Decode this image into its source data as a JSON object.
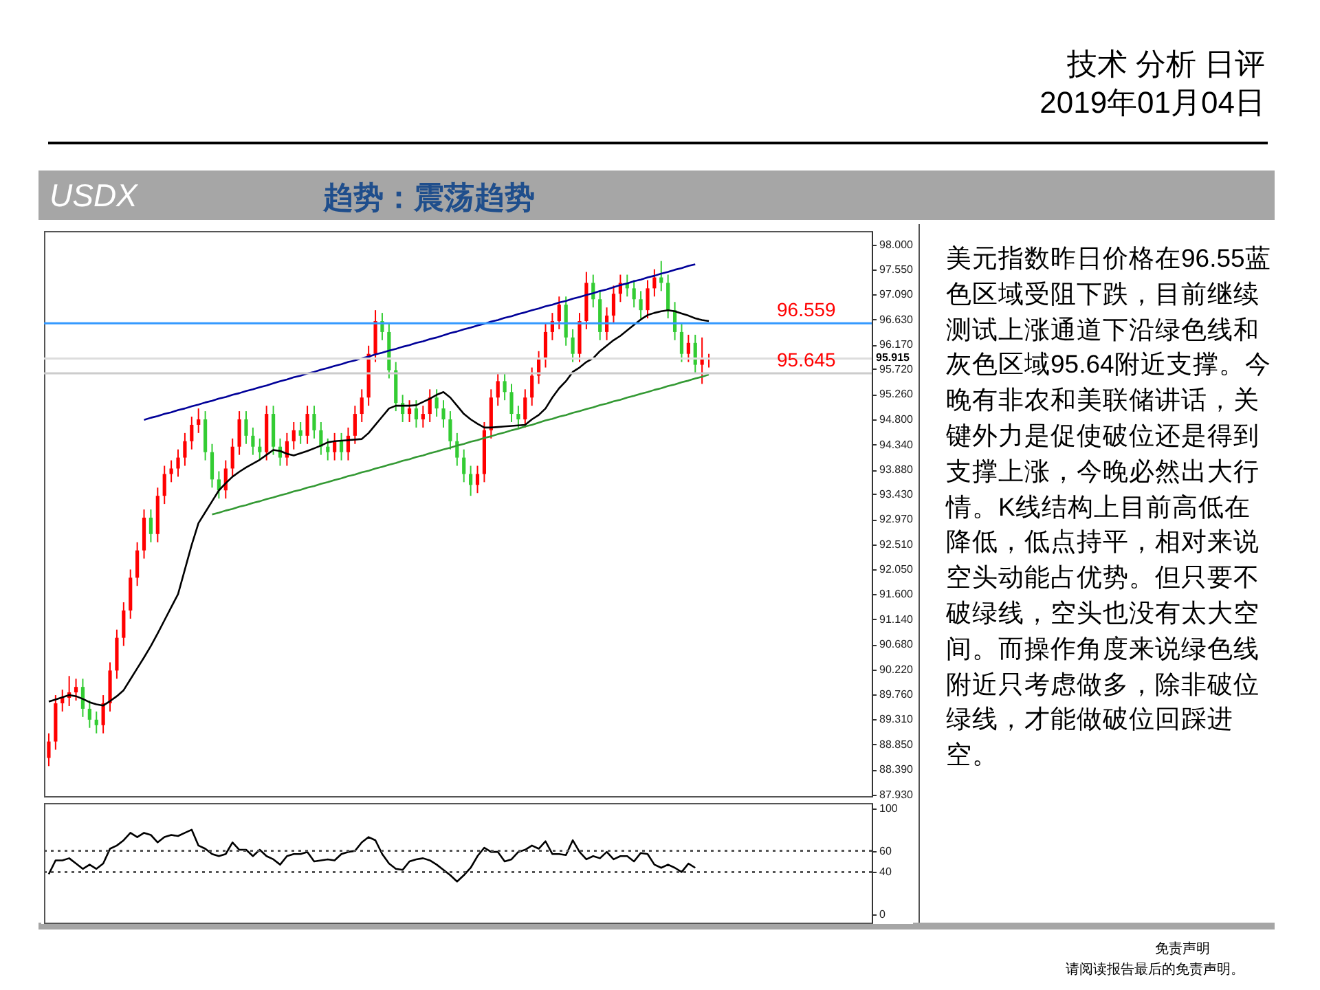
{
  "chart_data": [
    {
      "type": "candlestick",
      "title": "USDX",
      "subtitle": "趋势：震荡趋势",
      "categories": [
        null,
        null,
        null,
        null,
        null,
        null,
        null,
        null,
        null,
        null,
        null,
        null,
        null,
        null,
        null,
        null,
        null,
        null,
        null,
        null,
        null,
        null,
        null,
        null,
        null,
        null,
        null,
        null,
        null,
        null,
        null,
        null,
        null,
        null,
        null,
        null,
        null,
        null,
        null,
        null,
        null,
        null,
        null,
        null,
        null,
        null,
        null,
        null,
        null,
        null,
        null,
        null,
        null,
        null,
        null,
        null,
        null,
        null,
        null,
        null,
        null,
        null,
        null,
        null,
        null,
        null,
        null,
        null,
        null,
        null,
        null,
        null,
        null,
        null,
        null,
        null,
        null,
        null,
        null,
        null,
        null,
        null,
        null,
        null,
        null,
        null,
        null,
        null,
        null,
        null,
        null,
        null,
        null,
        null,
        null,
        null,
        null,
        null
      ],
      "ohlc": [
        [
          88.6,
          89.05,
          88.45,
          88.9
        ],
        [
          88.9,
          89.75,
          88.75,
          89.6
        ],
        [
          89.6,
          89.85,
          89.45,
          89.7
        ],
        [
          89.7,
          90.1,
          89.55,
          89.8
        ],
        [
          89.8,
          90.05,
          89.65,
          89.9
        ],
        [
          89.9,
          90.05,
          89.35,
          89.5
        ],
        [
          89.5,
          89.65,
          89.15,
          89.3
        ],
        [
          89.3,
          89.45,
          89.05,
          89.2
        ],
        [
          89.2,
          89.75,
          89.05,
          89.6
        ],
        [
          89.6,
          90.35,
          89.45,
          90.2
        ],
        [
          90.2,
          90.95,
          90.05,
          90.8
        ],
        [
          90.8,
          91.45,
          90.65,
          91.3
        ],
        [
          91.3,
          92.05,
          91.15,
          91.9
        ],
        [
          91.9,
          92.55,
          91.75,
          92.4
        ],
        [
          92.4,
          93.15,
          92.25,
          93.0
        ],
        [
          93.0,
          93.15,
          92.55,
          92.7
        ],
        [
          92.7,
          93.55,
          92.55,
          93.4
        ],
        [
          93.4,
          93.95,
          93.25,
          93.8
        ],
        [
          93.8,
          94.05,
          93.65,
          93.9
        ],
        [
          93.9,
          94.25,
          93.75,
          94.1
        ],
        [
          94.1,
          94.55,
          93.95,
          94.4
        ],
        [
          94.4,
          94.85,
          94.25,
          94.7
        ],
        [
          94.7,
          95.0,
          94.55,
          94.8
        ],
        [
          94.8,
          94.95,
          94.05,
          94.2
        ],
        [
          94.2,
          94.35,
          93.55,
          93.7
        ],
        [
          93.7,
          93.85,
          93.35,
          93.5
        ],
        [
          93.5,
          94.05,
          93.35,
          93.9
        ],
        [
          93.9,
          94.45,
          93.75,
          94.3
        ],
        [
          94.3,
          94.95,
          94.15,
          94.8
        ],
        [
          94.8,
          94.95,
          94.35,
          94.5
        ],
        [
          94.5,
          94.65,
          94.15,
          94.3
        ],
        [
          94.3,
          94.45,
          94.05,
          94.2
        ],
        [
          94.2,
          95.05,
          94.05,
          94.9
        ],
        [
          94.9,
          95.05,
          94.15,
          94.3
        ],
        [
          94.3,
          94.45,
          93.95,
          94.1
        ],
        [
          94.1,
          94.55,
          93.95,
          94.4
        ],
        [
          94.4,
          94.75,
          94.25,
          94.6
        ],
        [
          94.6,
          94.75,
          94.35,
          94.5
        ],
        [
          94.5,
          95.05,
          94.35,
          94.9
        ],
        [
          94.9,
          95.05,
          94.45,
          94.6
        ],
        [
          94.6,
          94.75,
          94.15,
          94.3
        ],
        [
          94.3,
          94.45,
          94.05,
          94.2
        ],
        [
          94.2,
          94.55,
          94.05,
          94.4
        ],
        [
          94.4,
          94.55,
          94.05,
          94.2
        ],
        [
          94.2,
          94.65,
          94.05,
          94.5
        ],
        [
          94.5,
          95.05,
          94.35,
          94.9
        ],
        [
          94.9,
          95.35,
          94.75,
          95.2
        ],
        [
          95.2,
          96.15,
          95.05,
          96.0
        ],
        [
          96.0,
          96.8,
          95.85,
          96.6
        ],
        [
          96.6,
          96.75,
          96.25,
          96.4
        ],
        [
          96.4,
          96.55,
          95.55,
          95.7
        ],
        [
          95.7,
          95.85,
          94.95,
          95.1
        ],
        [
          95.1,
          95.25,
          94.75,
          94.9
        ],
        [
          94.9,
          95.15,
          94.75,
          95.0
        ],
        [
          95.0,
          95.15,
          94.65,
          94.8
        ],
        [
          94.8,
          95.05,
          94.65,
          94.9
        ],
        [
          94.9,
          95.35,
          94.75,
          95.2
        ],
        [
          95.2,
          95.35,
          94.85,
          95.0
        ],
        [
          95.0,
          95.15,
          94.65,
          94.8
        ],
        [
          94.8,
          94.95,
          94.25,
          94.4
        ],
        [
          94.4,
          94.55,
          93.95,
          94.1
        ],
        [
          94.1,
          94.25,
          93.65,
          93.8
        ],
        [
          93.8,
          93.95,
          93.4,
          93.6
        ],
        [
          93.6,
          93.95,
          93.45,
          93.8
        ],
        [
          93.8,
          94.75,
          93.65,
          94.6
        ],
        [
          94.6,
          95.35,
          94.45,
          95.2
        ],
        [
          95.2,
          95.65,
          95.05,
          95.5
        ],
        [
          95.5,
          95.65,
          95.15,
          95.3
        ],
        [
          95.3,
          95.45,
          94.75,
          94.9
        ],
        [
          94.9,
          95.05,
          94.65,
          94.8
        ],
        [
          94.8,
          95.35,
          94.65,
          95.2
        ],
        [
          95.2,
          95.75,
          95.05,
          95.6
        ],
        [
          95.6,
          96.05,
          95.45,
          95.9
        ],
        [
          95.9,
          96.55,
          95.75,
          96.4
        ],
        [
          96.4,
          96.75,
          96.25,
          96.6
        ],
        [
          96.6,
          97.05,
          96.45,
          96.9
        ],
        [
          96.9,
          97.05,
          96.15,
          96.3
        ],
        [
          96.3,
          96.45,
          95.85,
          96.0
        ],
        [
          96.0,
          96.75,
          95.85,
          96.6
        ],
        [
          96.6,
          97.5,
          96.45,
          97.3
        ],
        [
          97.3,
          97.45,
          96.85,
          97.0
        ],
        [
          97.0,
          97.15,
          96.25,
          96.4
        ],
        [
          96.4,
          96.85,
          96.25,
          96.7
        ],
        [
          96.7,
          97.25,
          96.55,
          97.1
        ],
        [
          97.1,
          97.45,
          96.95,
          97.3
        ],
        [
          97.3,
          97.45,
          97.05,
          97.2
        ],
        [
          97.2,
          97.35,
          96.85,
          97.0
        ],
        [
          97.0,
          97.15,
          96.65,
          96.8
        ],
        [
          96.8,
          97.35,
          96.65,
          97.2
        ],
        [
          97.2,
          97.55,
          97.05,
          97.4
        ],
        [
          97.4,
          97.7,
          97.15,
          97.3
        ],
        [
          97.3,
          97.45,
          96.65,
          96.8
        ],
        [
          96.8,
          96.95,
          96.25,
          96.4
        ],
        [
          96.4,
          96.55,
          95.85,
          96.0
        ],
        [
          96.0,
          96.35,
          95.85,
          96.2
        ],
        [
          96.2,
          96.35,
          95.65,
          95.8
        ],
        [
          95.8,
          96.3,
          95.45,
          95.9
        ],
        [
          95.9,
          96.0,
          95.75,
          95.92
        ]
      ],
      "colors": [
        "#ff0000",
        "#ff0000",
        "#ff0000",
        "#ff0000",
        "#ff0000",
        "#33cc33",
        "#33cc33",
        "#33cc33",
        "#ff0000",
        "#ff0000",
        "#ff0000",
        "#ff0000",
        "#ff0000",
        "#ff0000",
        "#ff0000",
        "#33cc33",
        "#ff0000",
        "#ff0000",
        "#ff0000",
        "#ff0000",
        "#ff0000",
        "#ff0000",
        "#ff0000",
        "#33cc33",
        "#33cc33",
        "#33cc33",
        "#ff0000",
        "#ff0000",
        "#ff0000",
        "#33cc33",
        "#33cc33",
        "#33cc33",
        "#ff0000",
        "#33cc33",
        "#33cc33",
        "#ff0000",
        "#ff0000",
        "#33cc33",
        "#ff0000",
        "#33cc33",
        "#33cc33",
        "#33cc33",
        "#ff0000",
        "#33cc33",
        "#ff0000",
        "#ff0000",
        "#ff0000",
        "#ff0000",
        "#ff0000",
        "#33cc33",
        "#33cc33",
        "#33cc33",
        "#33cc33",
        "#ff0000",
        "#33cc33",
        "#ff0000",
        "#ff0000",
        "#33cc33",
        "#33cc33",
        "#33cc33",
        "#33cc33",
        "#33cc33",
        "#33cc33",
        "#ff0000",
        "#ff0000",
        "#ff0000",
        "#ff0000",
        "#33cc33",
        "#33cc33",
        "#33cc33",
        "#ff0000",
        "#ff0000",
        "#ff0000",
        "#ff0000",
        "#ff0000",
        "#ff0000",
        "#33cc33",
        "#33cc33",
        "#ff0000",
        "#ff0000",
        "#33cc33",
        "#33cc33",
        "#ff0000",
        "#ff0000",
        "#ff0000",
        "#33cc33",
        "#33cc33",
        "#33cc33",
        "#ff0000",
        "#ff0000",
        "#33cc33",
        "#33cc33",
        "#33cc33",
        "#33cc33",
        "#ff0000",
        "#33cc33",
        "#ff0000",
        "#ff0000"
      ],
      "series": [
        {
          "type": "line",
          "color": "#000000",
          "values": [
            89.63,
            89.67,
            89.71,
            89.75,
            89.73,
            89.68,
            89.62,
            89.58,
            89.56,
            89.64,
            89.73,
            89.84,
            90.04,
            90.24,
            90.44,
            90.65,
            90.88,
            91.12,
            91.36,
            91.6,
            92.05,
            92.5,
            92.9,
            93.1,
            93.3,
            93.5,
            93.63,
            93.75,
            93.84,
            93.92,
            93.99,
            94.06,
            94.15,
            94.24,
            94.22,
            94.17,
            94.14,
            94.18,
            94.22,
            94.27,
            94.32,
            94.38,
            94.4,
            94.41,
            94.42,
            94.43,
            94.44,
            94.55,
            94.7,
            94.85,
            95.0,
            95.05,
            95.05,
            95.05,
            95.06,
            95.12,
            95.18,
            95.25,
            95.3,
            95.2,
            95.05,
            94.9,
            94.8,
            94.72,
            94.65,
            94.65,
            94.66,
            94.67,
            94.68,
            94.69,
            94.7,
            94.8,
            94.88,
            95.0,
            95.2,
            95.37,
            95.5,
            95.67,
            95.75,
            95.85,
            95.92,
            96.05,
            96.15,
            96.25,
            96.33,
            96.43,
            96.53,
            96.63,
            96.71,
            96.75,
            96.78,
            96.8,
            96.78,
            96.74,
            96.7,
            96.65,
            96.62,
            96.6
          ]
        },
        {
          "type": "line",
          "color": "#000099",
          "values": [
            null,
            null,
            null,
            null,
            null,
            null,
            null,
            null,
            null,
            null,
            null,
            null,
            null,
            null,
            94.79,
            94.83,
            94.86,
            94.9,
            94.93,
            94.97,
            95.0,
            95.04,
            95.07,
            95.11,
            95.14,
            95.18,
            95.21,
            95.25,
            95.28,
            95.32,
            95.35,
            95.39,
            95.42,
            95.46,
            95.5,
            95.53,
            95.57,
            95.6,
            95.64,
            95.67,
            95.71,
            95.74,
            95.78,
            95.81,
            95.85,
            95.88,
            95.92,
            95.95,
            95.99,
            96.02,
            96.06,
            96.09,
            96.13,
            96.16,
            96.2,
            96.23,
            96.27,
            96.3,
            96.34,
            96.38,
            96.41,
            96.45,
            96.48,
            96.52,
            96.55,
            96.59,
            96.62,
            96.66,
            96.69,
            96.73,
            96.76,
            96.8,
            96.83,
            96.87,
            96.9,
            96.94,
            96.97,
            97.01,
            97.04,
            97.08,
            97.11,
            97.15,
            97.18,
            97.22,
            97.26,
            97.29,
            97.33,
            97.36,
            97.4,
            97.43,
            97.47,
            97.5,
            97.54,
            97.57,
            97.61,
            97.64,
            null,
            null
          ]
        },
        {
          "type": "line",
          "color": "#339933",
          "values": [
            null,
            null,
            null,
            null,
            null,
            null,
            null,
            null,
            null,
            null,
            null,
            null,
            null,
            null,
            null,
            null,
            null,
            null,
            null,
            null,
            null,
            null,
            null,
            null,
            93.06,
            93.09,
            93.13,
            93.16,
            93.2,
            93.23,
            93.27,
            93.3,
            93.34,
            93.37,
            93.41,
            93.44,
            93.48,
            93.51,
            93.55,
            93.58,
            93.62,
            93.65,
            93.69,
            93.72,
            93.76,
            93.79,
            93.83,
            93.86,
            93.9,
            93.93,
            93.97,
            94.0,
            94.04,
            94.07,
            94.11,
            94.14,
            94.18,
            94.21,
            94.25,
            94.28,
            94.32,
            94.35,
            94.39,
            94.42,
            94.46,
            94.49,
            94.53,
            94.56,
            94.6,
            94.63,
            94.67,
            94.7,
            94.74,
            94.78,
            94.81,
            94.85,
            94.88,
            94.92,
            94.95,
            94.99,
            95.02,
            95.06,
            95.09,
            95.13,
            95.16,
            95.2,
            95.23,
            95.27,
            95.3,
            95.34,
            95.37,
            95.41,
            95.44,
            95.48,
            95.51,
            95.55,
            95.58,
            95.62
          ]
        }
      ],
      "ylim": [
        87.9,
        98.25
      ],
      "yticks": [
        {
          "value": 98,
          "label": "98.000"
        },
        {
          "value": 97.55,
          "label": "97.550"
        },
        {
          "value": 97.09,
          "label": "97.090"
        },
        {
          "value": 96.63,
          "label": "96.630"
        },
        {
          "value": 96.17,
          "label": "96.170"
        },
        {
          "value": 95.72,
          "label": "95.720"
        },
        {
          "value": 95.26,
          "label": "95.260"
        },
        {
          "value": 94.8,
          "label": "94.800"
        },
        {
          "value": 94.34,
          "label": "94.340"
        },
        {
          "value": 93.88,
          "label": "93.880"
        },
        {
          "value": 93.43,
          "label": "93.430"
        },
        {
          "value": 92.97,
          "label": "92.970"
        },
        {
          "value": 92.51,
          "label": "92.510"
        },
        {
          "value": 92.05,
          "label": "92.050"
        },
        {
          "value": 91.6,
          "label": "91.600"
        },
        {
          "value": 91.14,
          "label": "91.140"
        },
        {
          "value": 90.68,
          "label": "90.680"
        },
        {
          "value": 90.22,
          "label": "90.220"
        },
        {
          "value": 89.76,
          "label": "89.760"
        },
        {
          "value": 89.31,
          "label": "89.310"
        },
        {
          "value": 88.85,
          "label": "88.850"
        },
        {
          "value": 88.39,
          "label": "88.390"
        },
        {
          "value": 87.93,
          "label": "87.930"
        }
      ],
      "ref_lines": [
        {
          "axis": "y",
          "value": 95.915,
          "label": "95.915",
          "color": "#dddddd"
        },
        {
          "axis": "y",
          "value": 96.559,
          "color": "#3399ff"
        },
        {
          "axis": "y",
          "value": 95.645,
          "color": "#cccccc"
        }
      ],
      "tick_labels": "y",
      "annotations": [
        "技术 分析 日评",
        "2019年01月04日",
        "美元指数昨日价格在96.55蓝色区域受阻下跌，目前继续测试上涨通道下沿绿色线和灰色区域95.64附近支撑。今晚有非农和美联储讲话，关键外力是促使破位还是得到支撑上涨，今晚必然出大行情。K线结构上目前高低在降低，低点持平，相对来说空头动能占优势。但只要不破绿线，空头也没有太大空间。而操作角度来说绿色线附近只考虑做多，除非破位绿线，才能做破位回踩进空。",
        "免责声明",
        "请阅读报告最后的免责声明。",
        {
          "text": "96.559",
          "y": 96.559
        },
        {
          "text": "95.645",
          "y": 95.645
        }
      ]
    },
    {
      "type": "line",
      "color": "#000000",
      "categories": [
        null,
        null,
        null,
        null,
        null,
        null,
        null,
        null,
        null,
        null,
        null,
        null,
        null,
        null,
        null,
        null,
        null,
        null,
        null,
        null,
        null,
        null,
        null,
        null,
        null,
        null,
        null,
        null,
        null,
        null,
        null,
        null,
        null,
        null,
        null,
        null,
        null,
        null,
        null,
        null,
        null,
        null,
        null,
        null,
        null,
        null,
        null,
        null,
        null,
        null,
        null,
        null,
        null,
        null,
        null,
        null,
        null,
        null,
        null,
        null,
        null,
        null,
        null,
        null,
        null,
        null,
        null,
        null,
        null,
        null,
        null,
        null,
        null,
        null,
        null,
        null,
        null,
        null,
        null,
        null,
        null,
        null,
        null,
        null,
        null,
        null,
        null,
        null,
        null,
        null,
        null,
        null,
        null,
        null,
        null,
        null,
        null,
        null
      ],
      "values": [
        38,
        51,
        51,
        53,
        48,
        43,
        47,
        43,
        48,
        62,
        65,
        70,
        77,
        73,
        77,
        75,
        68,
        73,
        75,
        74,
        77,
        80,
        65,
        62,
        57,
        55,
        57,
        68,
        61,
        61,
        55,
        61,
        55,
        52,
        47,
        55,
        57,
        57,
        59,
        50,
        51,
        52,
        51,
        57,
        59,
        60,
        68,
        73,
        70,
        57,
        48,
        43,
        42,
        50,
        52,
        53,
        51,
        47,
        42,
        37,
        31,
        37,
        44,
        55,
        63,
        59,
        59,
        50,
        52,
        59,
        61,
        65,
        62,
        69,
        57,
        57,
        56,
        70,
        59,
        52,
        55,
        53,
        59,
        52,
        55,
        55,
        50,
        58,
        57,
        47,
        44,
        47,
        44,
        40,
        48,
        44,
        null,
        null
      ],
      "ylim": [
        -7.8,
        105.2
      ],
      "yticks": [
        0,
        40,
        60,
        100
      ],
      "ref_lines": [
        {
          "axis": "y",
          "value": 40,
          "line_style": "dotted",
          "color": "#555555"
        },
        {
          "axis": "y",
          "value": 60,
          "line_style": "dotted",
          "color": "#555555"
        }
      ],
      "tick_labels": "y"
    }
  ]
}
